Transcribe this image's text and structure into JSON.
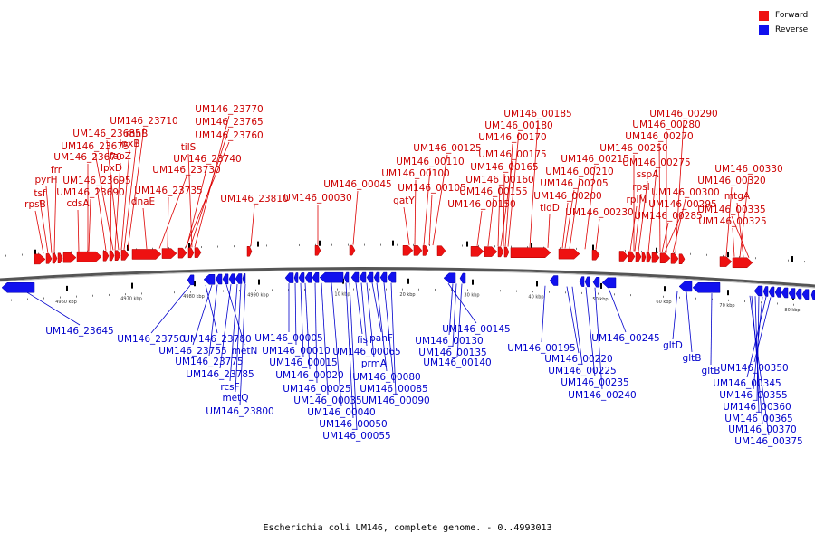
{
  "legend": {
    "forward_label": "Forward",
    "reverse_label": "Reverse",
    "forward_color": "#ee1111",
    "reverse_color": "#1111ee"
  },
  "caption": "Escherichia coli UM146, complete genome. - 0..4993013",
  "scale_labels": [
    "4960 kbp",
    "4970 kbp",
    "4980 kbp",
    "4990 kbp",
    "10 kbp",
    "20 kbp",
    "30 kbp",
    "40 kbp",
    "50 kbp",
    "60 kbp",
    "70 kbp",
    "80 kbp"
  ],
  "forward_labels": [
    "UM146_23770",
    "UM146_23765",
    "UM146_23760",
    "UM146_23710",
    "UM146_23685",
    "rnhB",
    "UM146_23675",
    "lpxB",
    "tilS",
    "UM146_23670",
    "UM146_23740",
    "frr",
    "fabZ",
    "lpxD",
    "UM146_23730",
    "pyrH",
    "UM146_23695",
    "tsf",
    "UM146_23690",
    "UM146_23735",
    "rpsB",
    "cdsA",
    "dnaE",
    "UM146_23810",
    "UM146_00030",
    "UM146_00045",
    "UM146_00125",
    "UM146_00110",
    "UM146_00100",
    "UM146_00105",
    "gatY",
    "UM146_00185",
    "UM146_00180",
    "UM146_00170",
    "UM146_00175",
    "UM146_00165",
    "UM146_00160",
    "UM146_00155",
    "UM146_00150",
    "UM146_00215",
    "UM146_00210",
    "UM146_00205",
    "UM146_00200",
    "tldD",
    "UM146_00230",
    "UM146_00290",
    "UM146_00280",
    "UM146_00270",
    "UM146_00250",
    "UM146_00275",
    "sspA",
    "rpsI",
    "UM146_00300",
    "rplM",
    "UM146_00295",
    "UM146_00285",
    "UM146_00330",
    "UM146_00320",
    "mtgA",
    "UM146_00335",
    "UM146_00325"
  ],
  "reverse_labels": [
    "UM146_23645",
    "UM146_23750",
    "UM146_23780",
    "UM146_23755",
    "metN",
    "UM146_23775",
    "UM146_23785",
    "rcsF",
    "metQ",
    "UM146_23800",
    "UM146_00005",
    "UM146_00010",
    "UM146_00015",
    "UM146_00020",
    "UM146_00025",
    "UM146_00035",
    "UM146_00040",
    "UM146_00050",
    "UM146_00055",
    "fis",
    "panF",
    "UM146_00065",
    "prmA",
    "UM146_00080",
    "UM146_00085",
    "UM146_00090",
    "UM146_00145",
    "UM146_00130",
    "UM146_00135",
    "UM146_00140",
    "UM146_00195",
    "UM146_00220",
    "UM146_00225",
    "UM146_00235",
    "UM146_00240",
    "UM146_00245",
    "gltD",
    "gltB",
    "gltB",
    "UM146_00350",
    "UM146_00345",
    "UM146_00355",
    "UM146_00360",
    "UM146_00365",
    "UM146_00370",
    "UM146_00375"
  ]
}
